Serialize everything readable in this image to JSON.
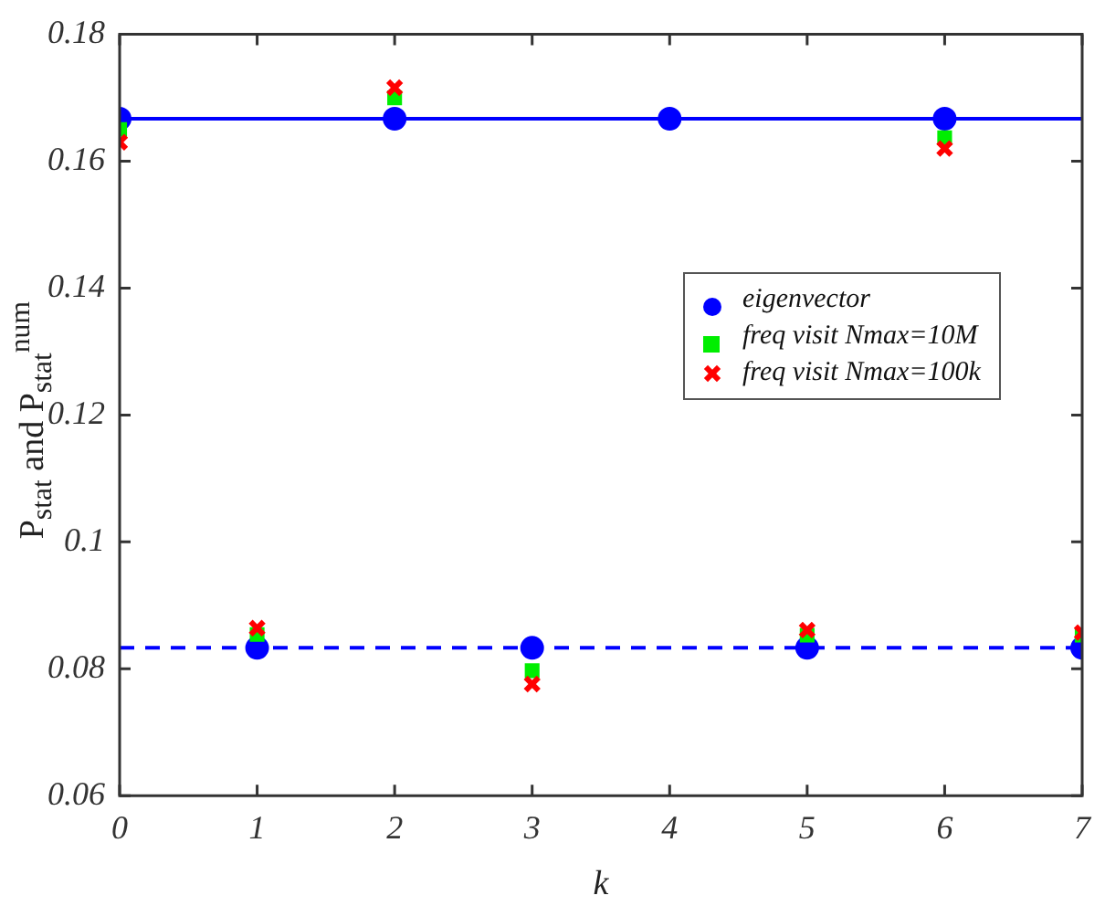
{
  "chart_data": {
    "type": "scatter",
    "xlabel": "k",
    "ylabel": "P$_{stat}$ and P$_{stat}$$^{num}$",
    "x": [
      0,
      1,
      2,
      3,
      4,
      5,
      6,
      7
    ],
    "xlim": [
      0,
      7
    ],
    "xticks": [
      0,
      1,
      2,
      3,
      4,
      5,
      6,
      7
    ],
    "ylim": [
      0.06,
      0.18
    ],
    "yticks": [
      0.06,
      0.08,
      0.1,
      0.12,
      0.14,
      0.16,
      0.18
    ],
    "grid": false,
    "legend": "top right",
    "series": [
      {
        "name": "eigenvector",
        "color": "#0000ff",
        "marker": "circle",
        "values": [
          0.1667,
          0.0833,
          0.1667,
          0.0833,
          0.1667,
          0.0833,
          0.1667,
          0.0833
        ]
      },
      {
        "name": "freq visit Nmax=10M",
        "color": "#00ee00",
        "marker": "square",
        "values": [
          0.165,
          0.0854,
          0.17,
          0.0797,
          null,
          0.0853,
          0.1637,
          0.0853
        ]
      },
      {
        "name": "freq visit Nmax=100k",
        "color": "#ff0000",
        "marker": "cross",
        "values": [
          0.163,
          0.0864,
          0.1716,
          0.0776,
          null,
          0.0861,
          0.162,
          0.0857
        ]
      }
    ],
    "ref_lines": [
      {
        "axis": "y",
        "value": 0.1667,
        "color": "#0000ff",
        "line_style": "solid"
      },
      {
        "axis": "y",
        "value": 0.0833,
        "color": "#0000ff",
        "line_style": "dashed"
      }
    ]
  }
}
